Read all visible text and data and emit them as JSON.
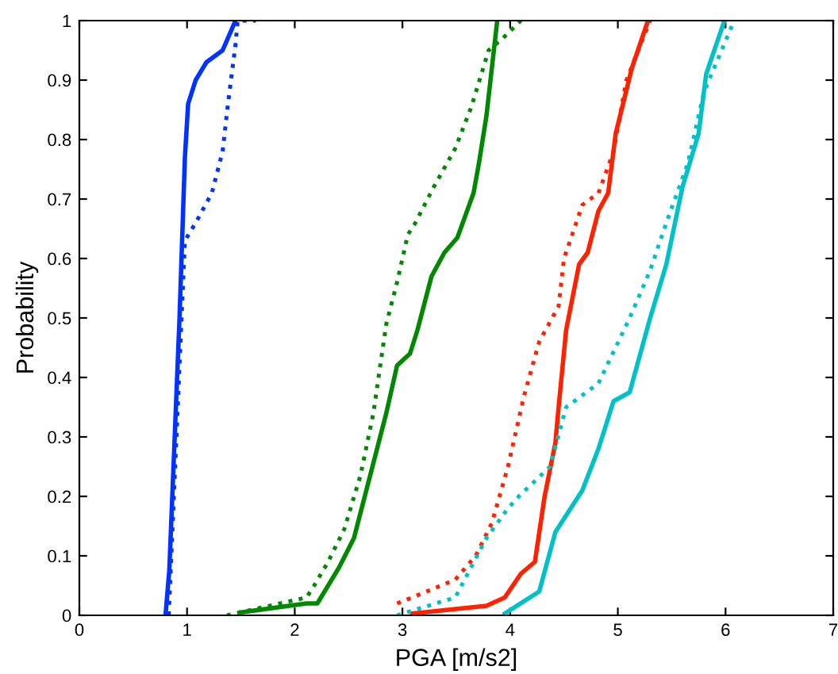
{
  "chart_data": {
    "type": "line",
    "xlabel": "PGA [m/s2]",
    "ylabel": "Probability",
    "xlim": [
      0,
      7
    ],
    "ylim": [
      0,
      1
    ],
    "xticks": [
      0,
      1,
      2,
      3,
      4,
      5,
      6,
      7
    ],
    "yticks": [
      0,
      0.1,
      0.2,
      0.3,
      0.4,
      0.5,
      0.6,
      0.7,
      0.8,
      0.9,
      1
    ],
    "grid": false,
    "legend": false,
    "marker": "none",
    "series": [
      {
        "color": "#0033ff",
        "line_style": "solid",
        "x": [
          0.8,
          0.835,
          0.93,
          0.98,
          1.01,
          1.08,
          1.18,
          1.33,
          1.45
        ],
        "values": [
          0,
          0.075,
          0.5,
          0.77,
          0.86,
          0.9,
          0.93,
          0.95,
          1.0
        ]
      },
      {
        "color": "#0033ff",
        "line_style": "dotted",
        "x": [
          0.83,
          0.98,
          1.08,
          1.23,
          1.33,
          1.38,
          1.45,
          1.47,
          1.64
        ],
        "values": [
          0,
          0.63,
          0.66,
          0.71,
          0.78,
          0.86,
          0.96,
          1.0,
          1.0
        ]
      },
      {
        "color": "#008800",
        "line_style": "solid",
        "x": [
          1.5,
          2.11,
          2.21,
          2.31,
          2.41,
          2.55,
          2.7,
          2.85,
          2.95,
          3.07,
          3.14,
          3.27,
          3.39,
          3.51,
          3.66,
          3.71,
          3.78,
          3.83,
          3.88
        ],
        "values": [
          0.005,
          0.02,
          0.02,
          0.05,
          0.08,
          0.13,
          0.235,
          0.34,
          0.42,
          0.44,
          0.48,
          0.57,
          0.61,
          0.635,
          0.71,
          0.76,
          0.84,
          0.92,
          1.0
        ]
      },
      {
        "color": "#008800",
        "line_style": "dotted",
        "x": [
          1.37,
          2.11,
          2.18,
          2.31,
          2.46,
          2.61,
          2.73,
          2.85,
          2.95,
          3.05,
          3.12,
          3.29,
          3.49,
          3.64,
          3.8,
          3.93,
          4.1
        ],
        "values": [
          0,
          0.03,
          0.05,
          0.09,
          0.145,
          0.235,
          0.34,
          0.49,
          0.56,
          0.64,
          0.66,
          0.72,
          0.785,
          0.855,
          0.95,
          0.97,
          1.0
        ]
      },
      {
        "color": "#ff2200",
        "line_style": "solid",
        "x": [
          3.09,
          3.78,
          3.95,
          4.1,
          4.23,
          4.32,
          4.42,
          4.45,
          4.52,
          4.64,
          4.72,
          4.82,
          4.91,
          4.98,
          5.13,
          5.28
        ],
        "values": [
          0.003,
          0.016,
          0.03,
          0.07,
          0.09,
          0.2,
          0.29,
          0.35,
          0.48,
          0.59,
          0.61,
          0.68,
          0.71,
          0.81,
          0.92,
          1.0
        ]
      },
      {
        "color": "#ff2200",
        "line_style": "dotted",
        "x": [
          2.95,
          3.09,
          3.49,
          3.68,
          3.83,
          3.98,
          4.13,
          4.27,
          4.45,
          4.5,
          4.67,
          4.82,
          4.96,
          5.08,
          5.3
        ],
        "values": [
          0.02,
          0.03,
          0.06,
          0.1,
          0.155,
          0.25,
          0.37,
          0.46,
          0.52,
          0.6,
          0.69,
          0.71,
          0.78,
          0.9,
          1.0
        ]
      },
      {
        "color": "#00c0c8",
        "line_style": "solid",
        "x": [
          3.95,
          4.27,
          4.42,
          4.67,
          4.82,
          4.96,
          5.11,
          5.3,
          5.45,
          5.6,
          5.75,
          5.82,
          5.99
        ],
        "values": [
          0.003,
          0.04,
          0.14,
          0.21,
          0.28,
          0.36,
          0.375,
          0.5,
          0.59,
          0.72,
          0.81,
          0.91,
          1.0
        ]
      },
      {
        "color": "#00c0c8",
        "line_style": "dotted",
        "x": [
          2.95,
          3.49,
          3.78,
          3.98,
          4.08,
          4.37,
          4.52,
          4.82,
          5.11,
          5.3,
          5.45,
          5.65,
          5.8,
          6.08
        ],
        "values": [
          0,
          0.03,
          0.13,
          0.18,
          0.2,
          0.25,
          0.35,
          0.39,
          0.5,
          0.58,
          0.66,
          0.76,
          0.88,
          1.0
        ]
      }
    ]
  }
}
